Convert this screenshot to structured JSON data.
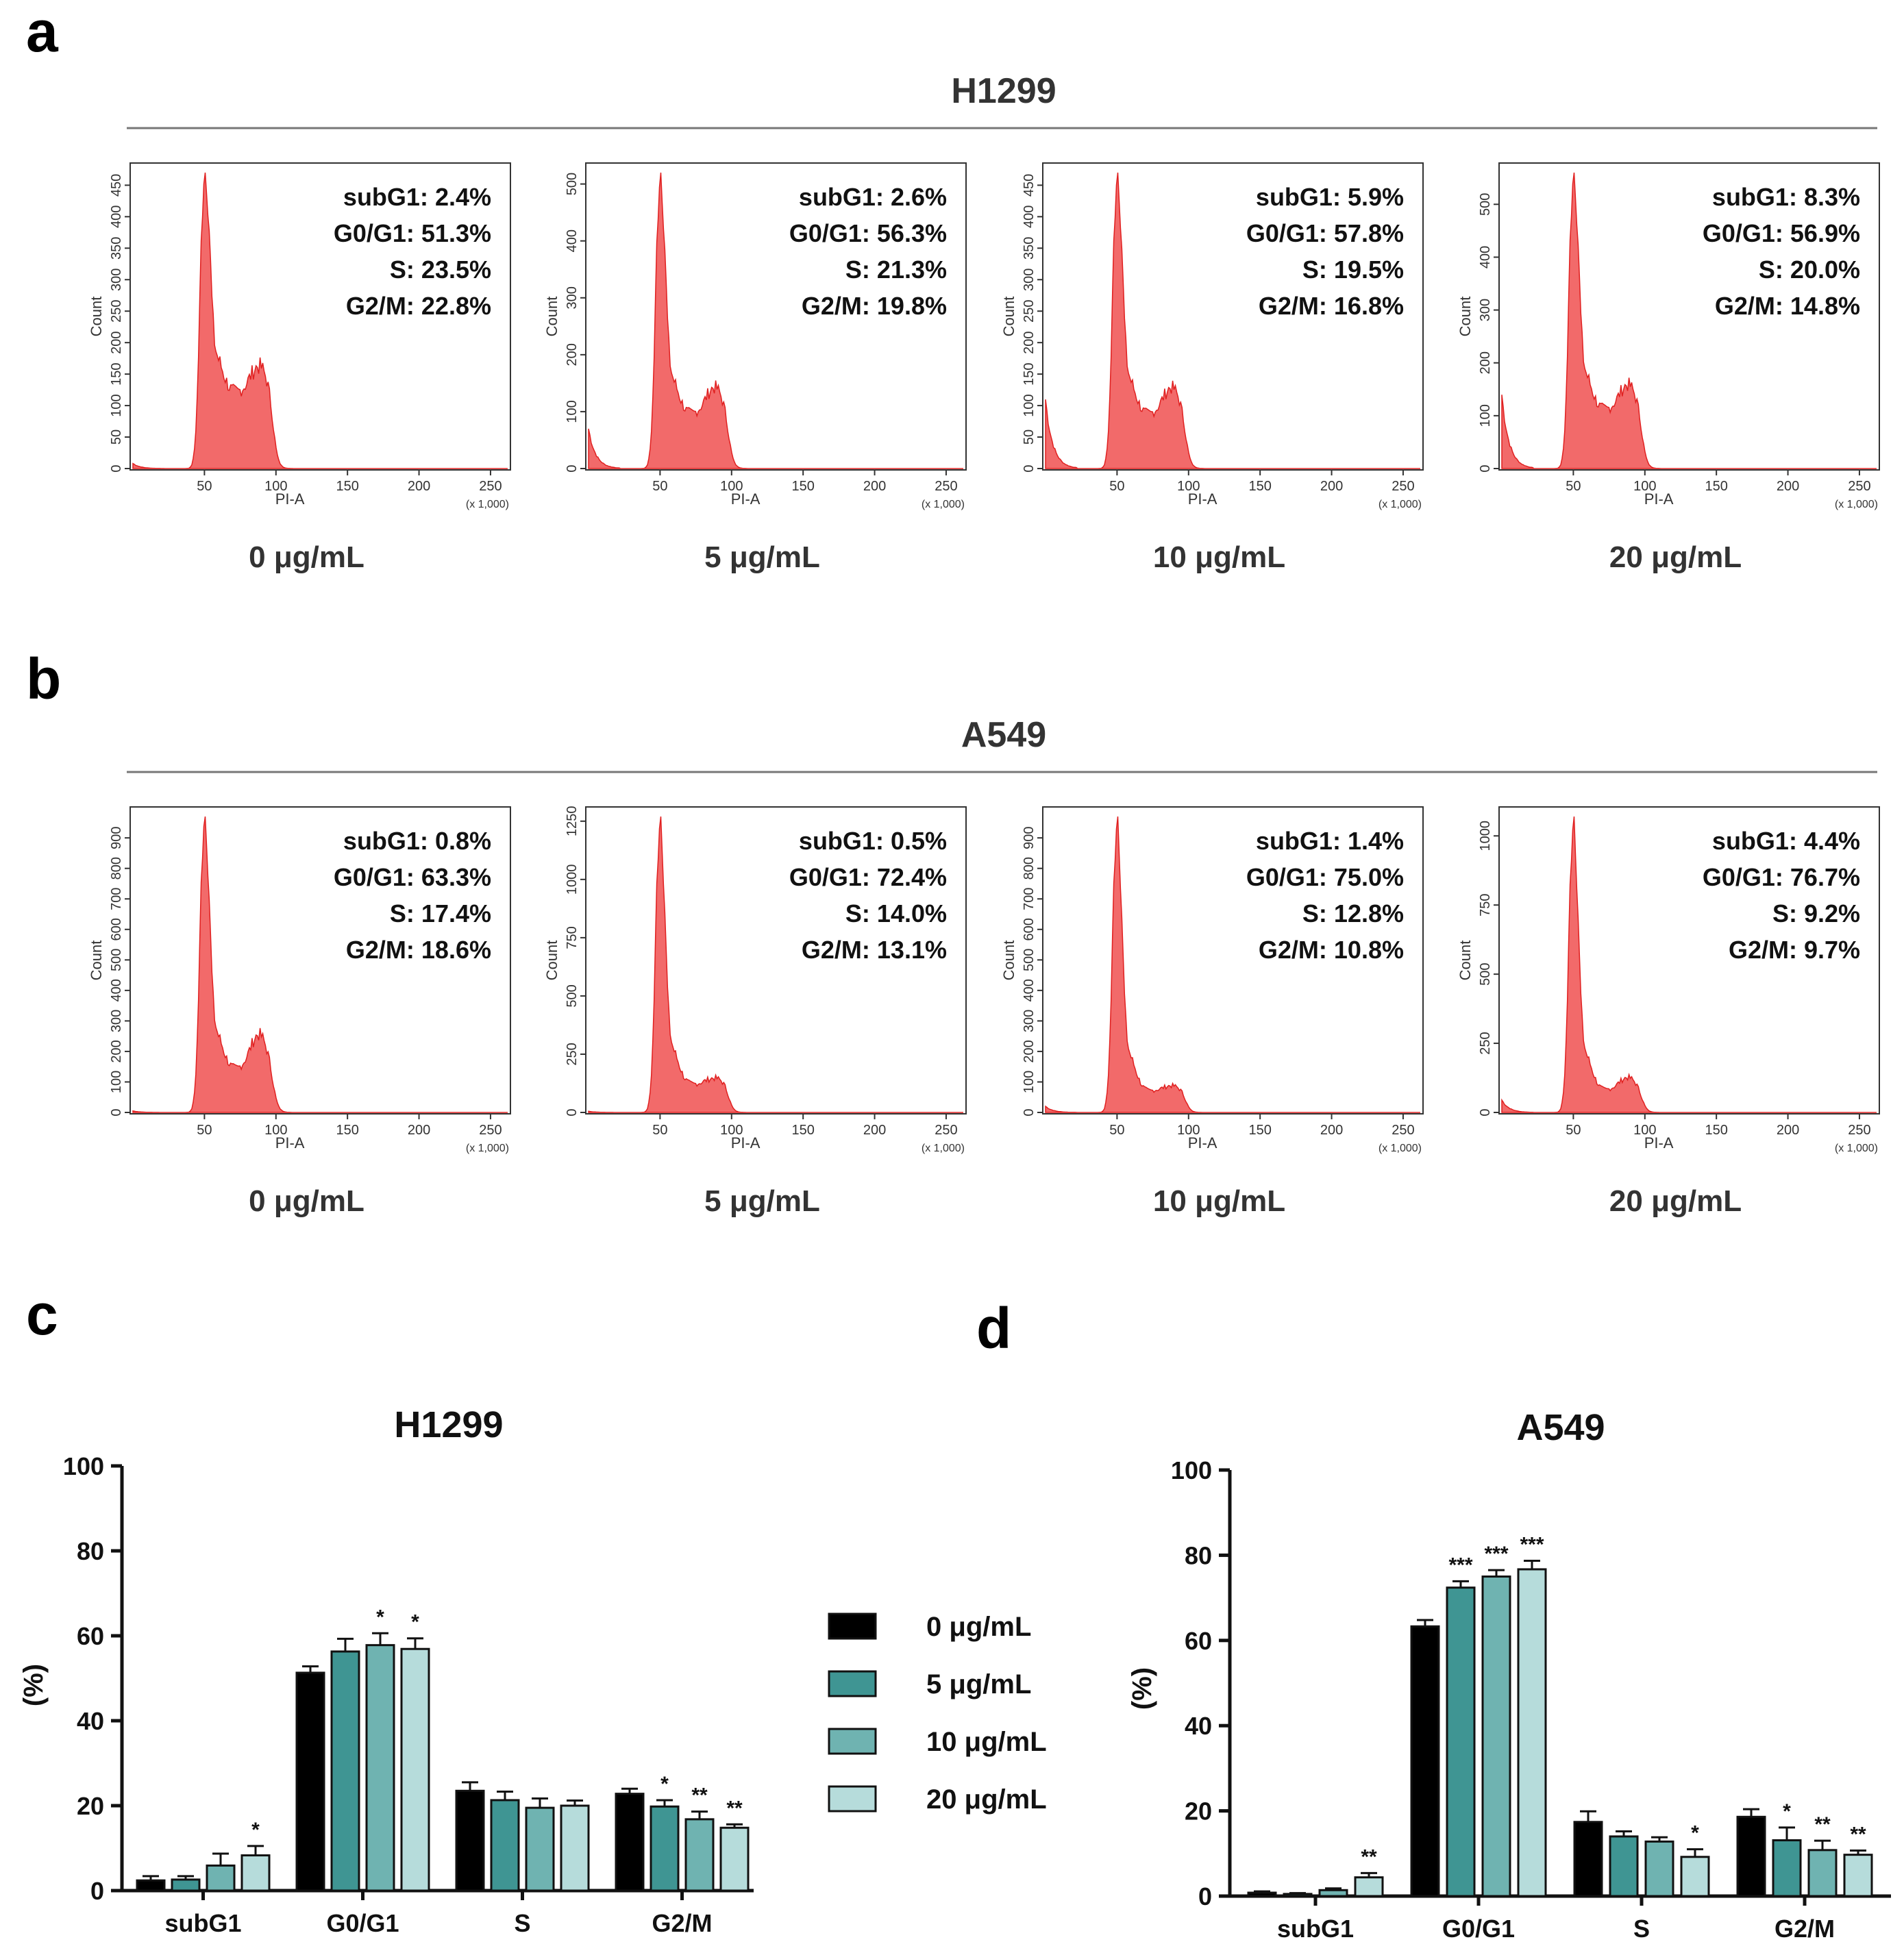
{
  "panel_labels": {
    "a": "a",
    "b": "b",
    "c": "c",
    "d": "d"
  },
  "concentrations": [
    "0 μg/mL",
    "5 μg/mL",
    "10 μg/mL",
    "20 μg/mL"
  ],
  "histogram_common": {
    "x_axis_label": "PI-A",
    "y_axis_label": "Count",
    "x_scale_note": "(x 1,000)",
    "x_ticks": [
      50,
      100,
      150,
      200,
      250
    ],
    "fill_color": "#f26a6a",
    "stroke_color": "#e02020"
  },
  "histograms": [
    {
      "cell_line": "H1299",
      "panels": [
        {
          "concentration": "0 μg/mL",
          "y_ticks": [
            0,
            50,
            100,
            150,
            200,
            250,
            300,
            350,
            400,
            450
          ],
          "y_max": 470,
          "peak": 460,
          "s_level": 120,
          "g2_level": 115,
          "sub_level": 8,
          "stats": [
            "subG1: 2.4%",
            "G0/G1: 51.3%",
            "S: 23.5%",
            "G2/M: 22.8%"
          ]
        },
        {
          "concentration": "5 μg/mL",
          "y_ticks": [
            0,
            100,
            200,
            300,
            400,
            500
          ],
          "y_max": 520,
          "peak": 505,
          "s_level": 95,
          "g2_level": 105,
          "sub_level": 70,
          "stats": [
            "subG1: 2.6%",
            "G0/G1: 56.3%",
            "S: 21.3%",
            "G2/M: 19.8%"
          ]
        },
        {
          "concentration": "10 μg/mL",
          "y_ticks": [
            0,
            50,
            100,
            150,
            200,
            250,
            300,
            350,
            400,
            450
          ],
          "y_max": 470,
          "peak": 460,
          "s_level": 85,
          "g2_level": 95,
          "sub_level": 110,
          "stats": [
            "subG1: 5.9%",
            "G0/G1: 57.8%",
            "S: 19.5%",
            "G2/M: 16.8%"
          ]
        },
        {
          "concentration": "20 μg/mL",
          "y_ticks": [
            0,
            100,
            200,
            300,
            400,
            500
          ],
          "y_max": 560,
          "peak": 550,
          "s_level": 110,
          "g2_level": 115,
          "sub_level": 140,
          "stats": [
            "subG1: 8.3%",
            "G0/G1: 56.9%",
            "S: 20.0%",
            "G2/M: 14.8%"
          ]
        }
      ]
    },
    {
      "cell_line": "A549",
      "panels": [
        {
          "concentration": "0 μg/mL",
          "y_ticks": [
            0,
            100,
            200,
            300,
            400,
            500,
            600,
            700,
            800,
            900
          ],
          "y_max": 970,
          "peak": 960,
          "s_level": 140,
          "g2_level": 200,
          "sub_level": 5,
          "stats": [
            "subG1: 0.8%",
            "G0/G1: 63.3%",
            "S: 17.4%",
            "G2/M: 18.6%"
          ]
        },
        {
          "concentration": "5 μg/mL",
          "y_ticks": [
            0,
            250,
            500,
            750,
            1000,
            1250
          ],
          "y_max": 1270,
          "peak": 1250,
          "s_level": 120,
          "g2_level": 100,
          "sub_level": 5,
          "stats": [
            "subG1: 0.5%",
            "G0/G1: 72.4%",
            "S: 14.0%",
            "G2/M: 13.1%"
          ]
        },
        {
          "concentration": "10 μg/mL",
          "y_ticks": [
            0,
            100,
            200,
            300,
            400,
            500,
            600,
            700,
            800,
            900
          ],
          "y_max": 970,
          "peak": 955,
          "s_level": 70,
          "g2_level": 60,
          "sub_level": 20,
          "stats": [
            "subG1: 1.4%",
            "G0/G1: 75.0%",
            "S: 12.8%",
            "G2/M: 10.8%"
          ]
        },
        {
          "concentration": "20 μg/mL",
          "y_ticks": [
            0,
            250,
            500,
            750,
            1000
          ],
          "y_max": 1070,
          "peak": 1050,
          "s_level": 80,
          "g2_level": 95,
          "sub_level": 45,
          "stats": [
            "subG1: 4.4%",
            "G0/G1: 76.7%",
            "S: 9.2%",
            "G2/M: 9.7%"
          ]
        }
      ]
    }
  ],
  "legend": {
    "items": [
      {
        "label": "0 μg/mL",
        "color": "#000000"
      },
      {
        "label": "5 μg/mL",
        "color": "#3f9593"
      },
      {
        "label": "10 μg/mL",
        "color": "#6fb3b1"
      },
      {
        "label": "20 μg/mL",
        "color": "#b6dcdb"
      }
    ]
  },
  "chart_data": [
    {
      "type": "bar",
      "title": "H1299",
      "ylabel": "(%)",
      "xlabel": "",
      "ylim": [
        0,
        100
      ],
      "yticks": [
        0,
        20,
        40,
        60,
        80,
        100
      ],
      "categories": [
        "subG1",
        "G0/G1",
        "S",
        "G2/M"
      ],
      "series": [
        {
          "name": "0 μg/mL",
          "values": [
            2.4,
            51.3,
            23.5,
            22.8
          ],
          "errors": [
            1.0,
            1.5,
            2.0,
            1.2
          ],
          "significance": [
            "",
            "",
            "",
            ""
          ]
        },
        {
          "name": "5 μg/mL",
          "values": [
            2.6,
            56.3,
            21.3,
            19.8
          ],
          "errors": [
            0.8,
            3.0,
            2.0,
            1.5
          ],
          "significance": [
            "",
            "",
            "",
            "*"
          ]
        },
        {
          "name": "10 μg/mL",
          "values": [
            5.9,
            57.8,
            19.5,
            16.8
          ],
          "errors": [
            2.8,
            2.8,
            2.2,
            1.8
          ],
          "significance": [
            "",
            "*",
            "",
            "**"
          ]
        },
        {
          "name": "20 μg/mL",
          "values": [
            8.3,
            56.9,
            20.0,
            14.8
          ],
          "errors": [
            2.2,
            2.5,
            1.2,
            0.8
          ],
          "significance": [
            "*",
            "*",
            "",
            "**"
          ]
        }
      ]
    },
    {
      "type": "bar",
      "title": "A549",
      "ylabel": "(%)",
      "xlabel": "",
      "ylim": [
        0,
        100
      ],
      "yticks": [
        0,
        20,
        40,
        60,
        80,
        100
      ],
      "categories": [
        "subG1",
        "G0/G1",
        "S",
        "G2/M"
      ],
      "series": [
        {
          "name": "0 μg/mL",
          "values": [
            0.8,
            63.3,
            17.4,
            18.6
          ],
          "errors": [
            0.3,
            1.5,
            2.5,
            1.8
          ],
          "significance": [
            "",
            "",
            "",
            ""
          ]
        },
        {
          "name": "5 μg/mL",
          "values": [
            0.5,
            72.4,
            14.0,
            13.1
          ],
          "errors": [
            0.2,
            1.5,
            1.2,
            3.0
          ],
          "significance": [
            "",
            "***",
            "",
            "*"
          ]
        },
        {
          "name": "10 μg/mL",
          "values": [
            1.4,
            75.0,
            12.8,
            10.8
          ],
          "errors": [
            0.4,
            1.5,
            1.0,
            2.2
          ],
          "significance": [
            "",
            "***",
            "",
            "**"
          ]
        },
        {
          "name": "20 μg/mL",
          "values": [
            4.4,
            76.7,
            9.2,
            9.7
          ],
          "errors": [
            1.0,
            2.0,
            1.8,
            1.0
          ],
          "significance": [
            "**",
            "***",
            "*",
            "**"
          ]
        }
      ]
    }
  ]
}
